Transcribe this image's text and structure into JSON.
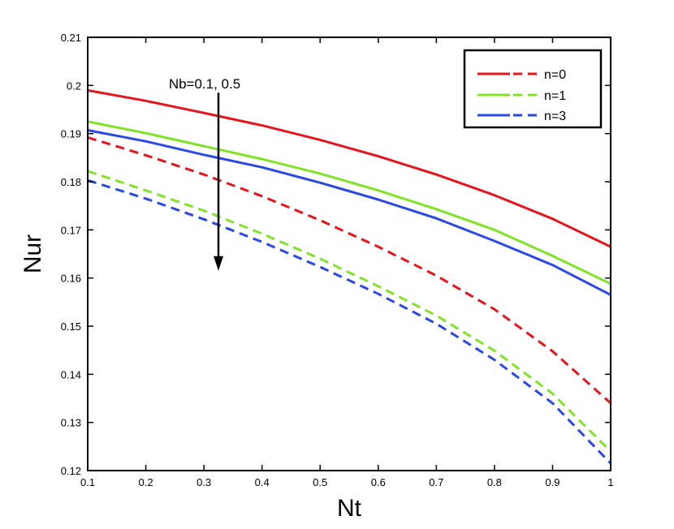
{
  "chart_data": {
    "type": "line",
    "title": "",
    "xlabel": "Nt",
    "ylabel": "Nur",
    "xlim": [
      0.1,
      1
    ],
    "ylim": [
      0.12,
      0.21
    ],
    "xticks": [
      0.1,
      0.2,
      0.3,
      0.4,
      0.5,
      0.6,
      0.7,
      0.8,
      0.9,
      1
    ],
    "xtick_labels": [
      "0.1",
      "0.2",
      "0.3",
      "0.4",
      "0.5",
      "0.6",
      "0.7",
      "0.8",
      "0.9",
      "1"
    ],
    "yticks": [
      0.12,
      0.13,
      0.14,
      0.15,
      0.16,
      0.17,
      0.18,
      0.19,
      0.2,
      0.21
    ],
    "ytick_labels": [
      "0.12",
      "0.13",
      "0.14",
      "0.15",
      "0.16",
      "0.17",
      "0.18",
      "0.19",
      "0.2",
      "0.21"
    ],
    "grid": false,
    "legend_position": "top-right",
    "x": [
      0.1,
      0.2,
      0.3,
      0.4,
      0.5,
      0.6,
      0.7,
      0.8,
      0.9,
      1.0
    ],
    "series": [
      {
        "name": "n=0 (Nb=0.1)",
        "legend": "n=0",
        "color": "#e8141c",
        "dash": "solid",
        "values": [
          0.199,
          0.1968,
          0.1943,
          0.1917,
          0.1887,
          0.1853,
          0.1815,
          0.1772,
          0.1723,
          0.1665
        ]
      },
      {
        "name": "n=1 (Nb=0.1)",
        "legend": "n=1",
        "color": "#7fe425",
        "dash": "solid",
        "values": [
          0.1925,
          0.1901,
          0.1874,
          0.1847,
          0.1817,
          0.1782,
          0.1743,
          0.17,
          0.1646,
          0.1588
        ]
      },
      {
        "name": "n=3 (Nb=0.1)",
        "legend": "n=3",
        "color": "#2a48e8",
        "dash": "solid",
        "values": [
          0.1907,
          0.1884,
          0.1856,
          0.183,
          0.1798,
          0.1763,
          0.1724,
          0.1677,
          0.1627,
          0.1565
        ]
      },
      {
        "name": "n=0 (Nb=0.5)",
        "legend": "n=0",
        "color": "#e8141c",
        "dash": "dashed",
        "values": [
          0.1892,
          0.1855,
          0.1815,
          0.177,
          0.172,
          0.1665,
          0.1605,
          0.1535,
          0.1448,
          0.134
        ]
      },
      {
        "name": "n=1 (Nb=0.5)",
        "legend": "n=1",
        "color": "#7fe425",
        "dash": "dashed",
        "values": [
          0.1822,
          0.1782,
          0.174,
          0.1692,
          0.164,
          0.1583,
          0.1522,
          0.1449,
          0.136,
          0.124
        ]
      },
      {
        "name": "n=3 (Nb=0.5)",
        "legend": "n=3",
        "color": "#2a48e8",
        "dash": "dashed",
        "values": [
          0.1803,
          0.1765,
          0.1722,
          0.1675,
          0.1623,
          0.1567,
          0.1505,
          0.143,
          0.134,
          0.1215
        ]
      }
    ],
    "legend_entries": [
      "n=0",
      "n=1",
      "n=3"
    ],
    "annotation": {
      "text": "Nb=0.1, 0.5",
      "arrow_x": 0.325,
      "arrow_from_y": 0.1985,
      "arrow_to_y": 0.1615
    }
  }
}
